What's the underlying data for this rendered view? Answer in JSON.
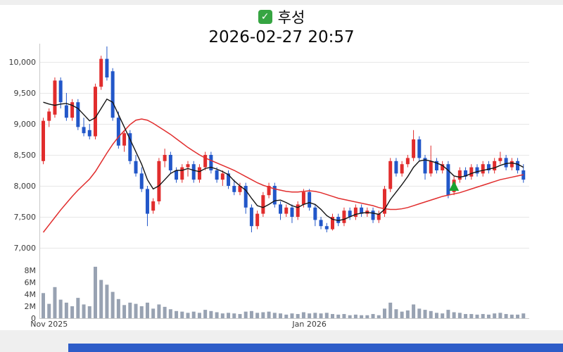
{
  "header": {
    "checkbox_glyph": "✓",
    "title_text": "후성",
    "datetime": "2026-02-27 20:57"
  },
  "chart_data": {
    "type": "candlestick",
    "title": "후성",
    "subtitle": "2026-02-27 20:57",
    "volume_unit": "millions",
    "price_axis": {
      "min": 7000,
      "max": 10400,
      "gridlines": true,
      "ticks": [
        {
          "value": 10000,
          "label": "10,000"
        },
        {
          "value": 9500,
          "label": "9,500"
        },
        {
          "value": 9000,
          "label": "9,000"
        },
        {
          "value": 8500,
          "label": "8,500"
        },
        {
          "value": 8000,
          "label": "8,000"
        },
        {
          "value": 7500,
          "label": "7,500"
        },
        {
          "value": 7000,
          "label": "7,000"
        }
      ]
    },
    "volume_axis": {
      "min": 0,
      "max_millions": 9,
      "ticks": [
        {
          "value_millions": 8,
          "label": "8M"
        },
        {
          "value_millions": 6,
          "label": "6M"
        },
        {
          "value_millions": 4,
          "label": "4M"
        },
        {
          "value_millions": 2,
          "label": "2M"
        },
        {
          "value_millions": 0,
          "label": "0"
        }
      ]
    },
    "x_axis": {
      "labels": [
        {
          "text": "Nov 2025",
          "candle_index": 1
        },
        {
          "text": "Jan 2026",
          "candle_index": 46
        }
      ]
    },
    "series": {
      "candles_ohlcv": [
        [
          8400,
          9100,
          8350,
          9050,
          4.2
        ],
        [
          9050,
          9250,
          8950,
          9200,
          2.4
        ],
        [
          9150,
          9750,
          9100,
          9700,
          5.2
        ],
        [
          9700,
          9750,
          9250,
          9350,
          3.1
        ],
        [
          9300,
          9500,
          9050,
          9100,
          2.6
        ],
        [
          9100,
          9400,
          9050,
          9350,
          2.0
        ],
        [
          9350,
          9400,
          8900,
          8950,
          3.4
        ],
        [
          8950,
          9100,
          8800,
          8850,
          2.3
        ],
        [
          8900,
          9000,
          8750,
          8800,
          2.0
        ],
        [
          8800,
          9650,
          8750,
          9600,
          8.6
        ],
        [
          9600,
          10100,
          9550,
          10050,
          6.4
        ],
        [
          10050,
          10250,
          9700,
          9750,
          5.6
        ],
        [
          9850,
          9900,
          9050,
          9100,
          4.4
        ],
        [
          9100,
          9200,
          8600,
          8650,
          3.2
        ],
        [
          8650,
          8900,
          8550,
          8850,
          2.2
        ],
        [
          8850,
          8900,
          8350,
          8400,
          2.6
        ],
        [
          8400,
          8500,
          8150,
          8200,
          2.4
        ],
        [
          8200,
          8300,
          7900,
          7950,
          2.0
        ],
        [
          7950,
          8000,
          7350,
          7550,
          2.6
        ],
        [
          7600,
          7800,
          7550,
          7750,
          1.6
        ],
        [
          7750,
          8450,
          7700,
          8400,
          2.3
        ],
        [
          8400,
          8600,
          8300,
          8500,
          1.9
        ],
        [
          8500,
          8550,
          8200,
          8250,
          1.5
        ],
        [
          8250,
          8300,
          8050,
          8100,
          1.2
        ],
        [
          8100,
          8350,
          8050,
          8300,
          1.1
        ],
        [
          8300,
          8400,
          8150,
          8350,
          0.9
        ],
        [
          8350,
          8400,
          8050,
          8100,
          1.1
        ],
        [
          8100,
          8350,
          8050,
          8300,
          0.9
        ],
        [
          8300,
          8550,
          8250,
          8500,
          1.4
        ],
        [
          8500,
          8550,
          8200,
          8250,
          1.2
        ],
        [
          8250,
          8300,
          8050,
          8100,
          1.0
        ],
        [
          8100,
          8250,
          8000,
          8200,
          0.8
        ],
        [
          8200,
          8250,
          7950,
          8000,
          0.9
        ],
        [
          8000,
          8100,
          7850,
          7900,
          0.8
        ],
        [
          7900,
          8050,
          7850,
          8000,
          0.7
        ],
        [
          8000,
          8050,
          7550,
          7650,
          1.1
        ],
        [
          7650,
          7700,
          7250,
          7350,
          1.2
        ],
        [
          7350,
          7600,
          7300,
          7550,
          0.9
        ],
        [
          7550,
          7900,
          7500,
          7850,
          1.0
        ],
        [
          7850,
          8050,
          7800,
          8000,
          1.1
        ],
        [
          8000,
          8050,
          7650,
          7700,
          0.9
        ],
        [
          7700,
          7750,
          7450,
          7550,
          0.8
        ],
        [
          7550,
          7700,
          7500,
          7650,
          0.6
        ],
        [
          7650,
          7700,
          7400,
          7500,
          0.8
        ],
        [
          7500,
          7750,
          7450,
          7700,
          0.7
        ],
        [
          7700,
          7950,
          7650,
          7900,
          1.0
        ],
        [
          7900,
          7950,
          7600,
          7650,
          0.8
        ],
        [
          7650,
          7700,
          7350,
          7450,
          0.9
        ],
        [
          7450,
          7500,
          7300,
          7350,
          0.8
        ],
        [
          7350,
          7400,
          7250,
          7300,
          0.9
        ],
        [
          7300,
          7550,
          7280,
          7500,
          0.7
        ],
        [
          7500,
          7550,
          7350,
          7400,
          0.6
        ],
        [
          7400,
          7650,
          7350,
          7600,
          0.7
        ],
        [
          7600,
          7650,
          7450,
          7500,
          0.5
        ],
        [
          7500,
          7700,
          7450,
          7650,
          0.6
        ],
        [
          7650,
          7700,
          7500,
          7550,
          0.5
        ],
        [
          7550,
          7650,
          7500,
          7600,
          0.5
        ],
        [
          7600,
          7650,
          7400,
          7450,
          0.7
        ],
        [
          7450,
          7600,
          7400,
          7550,
          0.5
        ],
        [
          7550,
          8000,
          7500,
          7950,
          1.6
        ],
        [
          7950,
          8450,
          7900,
          8400,
          2.6
        ],
        [
          8400,
          8450,
          8150,
          8200,
          1.5
        ],
        [
          8200,
          8400,
          8150,
          8350,
          1.1
        ],
        [
          8350,
          8500,
          8300,
          8450,
          1.3
        ],
        [
          8450,
          8900,
          8400,
          8750,
          2.3
        ],
        [
          8750,
          8800,
          8400,
          8450,
          1.6
        ],
        [
          8450,
          8500,
          8100,
          8200,
          1.4
        ],
        [
          8200,
          8650,
          8150,
          8400,
          1.2
        ],
        [
          8400,
          8450,
          8200,
          8250,
          0.9
        ],
        [
          8250,
          8400,
          8200,
          8350,
          0.8
        ],
        [
          8350,
          8400,
          7800,
          7850,
          1.4
        ],
        [
          7900,
          8150,
          7850,
          8100,
          1.0
        ],
        [
          8100,
          8300,
          8050,
          8250,
          0.9
        ],
        [
          8250,
          8300,
          8100,
          8150,
          0.7
        ],
        [
          8150,
          8350,
          8100,
          8300,
          0.7
        ],
        [
          8300,
          8350,
          8150,
          8200,
          0.6
        ],
        [
          8200,
          8400,
          8150,
          8350,
          0.7
        ],
        [
          8350,
          8400,
          8200,
          8250,
          0.6
        ],
        [
          8250,
          8450,
          8200,
          8400,
          0.8
        ],
        [
          8400,
          8550,
          8350,
          8450,
          0.9
        ],
        [
          8450,
          8500,
          8250,
          8300,
          0.7
        ],
        [
          8300,
          8450,
          8250,
          8400,
          0.6
        ],
        [
          8400,
          8450,
          8200,
          8250,
          0.6
        ],
        [
          8250,
          8350,
          8050,
          8100,
          0.8
        ]
      ],
      "ma_short": [
        9350,
        9320,
        9300,
        9320,
        9330,
        9300,
        9250,
        9150,
        9050,
        9100,
        9250,
        9400,
        9350,
        9150,
        8950,
        8750,
        8550,
        8350,
        8100,
        7950,
        8000,
        8100,
        8200,
        8250,
        8250,
        8280,
        8250,
        8230,
        8280,
        8300,
        8270,
        8230,
        8180,
        8080,
        8000,
        7930,
        7800,
        7680,
        7650,
        7700,
        7760,
        7770,
        7730,
        7680,
        7650,
        7700,
        7730,
        7700,
        7620,
        7520,
        7460,
        7440,
        7460,
        7500,
        7540,
        7560,
        7570,
        7560,
        7540,
        7620,
        7780,
        7900,
        8020,
        8150,
        8300,
        8400,
        8420,
        8400,
        8370,
        8330,
        8250,
        8160,
        8140,
        8160,
        8200,
        8230,
        8250,
        8270,
        8290,
        8330,
        8360,
        8370,
        8350,
        8300
      ],
      "ma_long": [
        7250,
        7370,
        7490,
        7610,
        7720,
        7830,
        7930,
        8020,
        8110,
        8230,
        8380,
        8530,
        8670,
        8790,
        8890,
        8990,
        9060,
        9080,
        9060,
        9010,
        8950,
        8890,
        8830,
        8760,
        8690,
        8620,
        8560,
        8500,
        8450,
        8410,
        8370,
        8330,
        8290,
        8250,
        8200,
        8150,
        8100,
        8050,
        8010,
        7980,
        7950,
        7930,
        7910,
        7900,
        7900,
        7910,
        7920,
        7910,
        7890,
        7860,
        7830,
        7800,
        7780,
        7760,
        7740,
        7720,
        7700,
        7680,
        7650,
        7630,
        7620,
        7620,
        7630,
        7650,
        7680,
        7710,
        7740,
        7770,
        7800,
        7830,
        7850,
        7870,
        7890,
        7920,
        7950,
        7980,
        8010,
        8040,
        8070,
        8100,
        8120,
        8140,
        8160,
        8180
      ]
    },
    "marker": {
      "shape": "triangle-up",
      "candle_index": 71,
      "price_apex": 8080,
      "price_base": 7920
    },
    "colors": {
      "up": "#e12d2d",
      "down": "#2257c9",
      "ma_short": "#141414",
      "ma_long": "#e12d2d",
      "volume": "#98a2b2",
      "grid": "#e7e7e7",
      "axis": "#c9c9c9",
      "text": "#3a3a3a",
      "marker": "#17a32f",
      "checkbox": "#36a542",
      "bottom_bar": "#2d5cc8",
      "page_bg": "#efefef",
      "panel_bg": "#ffffff"
    }
  }
}
